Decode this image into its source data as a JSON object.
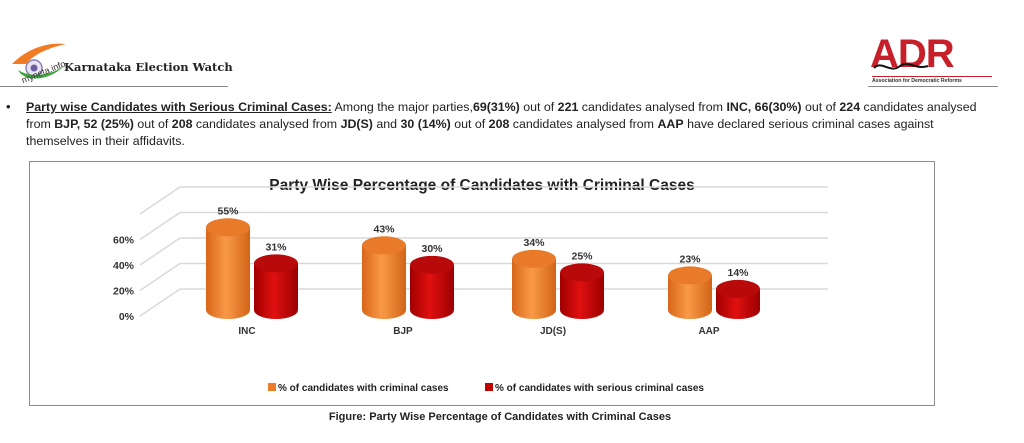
{
  "header": {
    "left_logo": {
      "brand": "myneta.info",
      "title": "Karnataka Election Watch"
    },
    "right_logo": {
      "brand": "ADR",
      "subtitle": "Association for Democratic Reforms"
    }
  },
  "paragraph": {
    "bullet": "•",
    "segments": [
      {
        "text": "Party wise Candidates with Serious Criminal Cases:",
        "style": "lead"
      },
      {
        "text": " Among the major parties,",
        "style": "normal"
      },
      {
        "text": "69(31%)",
        "style": "bold"
      },
      {
        "text": " out of ",
        "style": "normal"
      },
      {
        "text": "221",
        "style": "bold"
      },
      {
        "text": " candidates analysed from ",
        "style": "normal"
      },
      {
        "text": "INC, 66(30%)",
        "style": "bold"
      },
      {
        "text": " out of ",
        "style": "normal"
      },
      {
        "text": "224",
        "style": "bold"
      },
      {
        "text": " candidates analysed from ",
        "style": "normal"
      },
      {
        "text": "BJP, 52 (25%)",
        "style": "bold"
      },
      {
        "text": " out of ",
        "style": "normal"
      },
      {
        "text": "208",
        "style": "bold"
      },
      {
        "text": " candidates analysed from ",
        "style": "normal"
      },
      {
        "text": "JD(S)",
        "style": "bold"
      },
      {
        "text": " and ",
        "style": "normal"
      },
      {
        "text": "30 (14%)",
        "style": "bold"
      },
      {
        "text": " out of ",
        "style": "normal"
      },
      {
        "text": "208",
        "style": "bold"
      },
      {
        "text": " candidates analysed from ",
        "style": "normal"
      },
      {
        "text": "AAP",
        "style": "bold"
      },
      {
        "text": " have declared serious criminal cases against themselves in their affidavits.",
        "style": "normal"
      }
    ]
  },
  "caption": "Figure: Party Wise Percentage of Candidates with Criminal Cases",
  "chart_data": {
    "type": "bar",
    "style": "3d-cylinder",
    "title": "Party Wise Percentage of Candidates with Criminal Cases",
    "categories": [
      "INC",
      "BJP",
      "JD(S)",
      "AAP"
    ],
    "series": [
      {
        "name": "% of candidates with criminal cases",
        "values": [
          55,
          43,
          34,
          23
        ],
        "labels": [
          "55%",
          "43%",
          "34%",
          "23%"
        ],
        "color": "#ee7d2a"
      },
      {
        "name": "% of candidates with serious criminal cases",
        "values": [
          31,
          30,
          25,
          14
        ],
        "labels": [
          "31%",
          "30%",
          "25%",
          "14%"
        ],
        "color": "#c00000"
      }
    ],
    "yticks": [
      "0%",
      "20%",
      "40%",
      "60%"
    ],
    "ytick_values": [
      0,
      20,
      40,
      60
    ],
    "ylim": [
      0,
      80
    ],
    "xlabel": "",
    "ylabel": "",
    "grid": true,
    "legend": "bottom"
  }
}
